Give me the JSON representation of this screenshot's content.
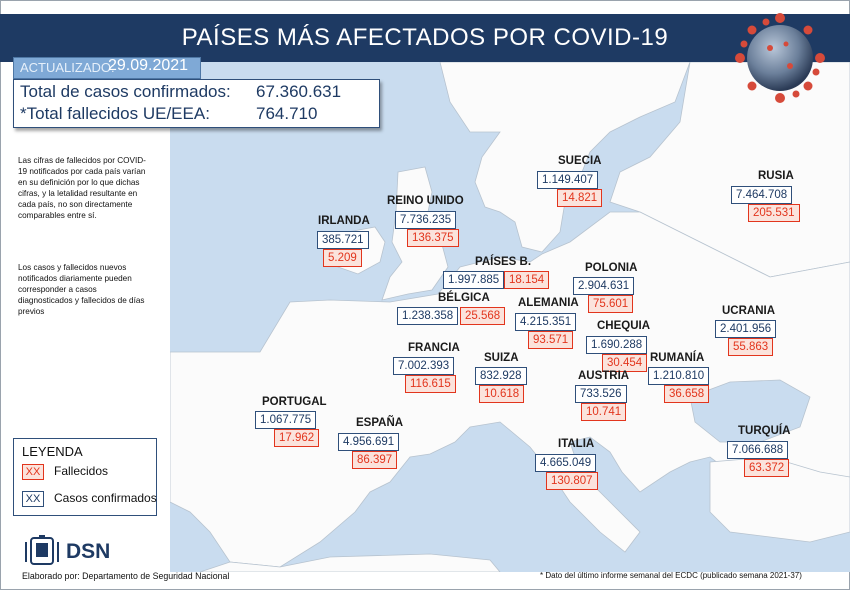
{
  "title": "PAÍSES MÁS AFECTADOS POR COVID-19",
  "updated": {
    "label": "ACTUALIZADO:",
    "date": "29.09.2021"
  },
  "totals": [
    {
      "label": "Total de casos confirmados:",
      "value": "67.360.631"
    },
    {
      "label": "*Total fallecidos UE/EEA:",
      "value": "764.710"
    }
  ],
  "notes": [
    "Las cifras de fallecidos por COVID-19 notificados por cada país varían en su definición por lo que dichas cifras, y la letalidad resultante en cada país, no son directamente comparables entre sí.",
    "Los casos y fallecidos nuevos notificados diariamente pueden corresponder a casos diagnosticados y fallecidos de días previos"
  ],
  "legend": {
    "title": "LEYENDA",
    "items": [
      {
        "symbol": "XX",
        "label": "Fallecidos",
        "kind": "deaths"
      },
      {
        "symbol": "XX",
        "label": "Casos confirmados",
        "kind": "cases"
      }
    ]
  },
  "countries": [
    {
      "name": "SUECIA",
      "cases": "1.149.407",
      "deaths": "14.821"
    },
    {
      "name": "RUSIA",
      "cases": "7.464.708",
      "deaths": "205.531"
    },
    {
      "name": "REINO UNIDO",
      "cases": "7.736.235",
      "deaths": "136.375"
    },
    {
      "name": "IRLANDA",
      "cases": "385.721",
      "deaths": "5.209"
    },
    {
      "name": "PAÍSES B.",
      "cases": "1.997.885",
      "deaths": "18.154"
    },
    {
      "name": "POLONIA",
      "cases": "2.904.631",
      "deaths": "75.601"
    },
    {
      "name": "BÉLGICA",
      "cases": "1.238.358",
      "deaths": "25.568"
    },
    {
      "name": "ALEMANIA",
      "cases": "4.215.351",
      "deaths": "93.571"
    },
    {
      "name": "UCRANIA",
      "cases": "2.401.956",
      "deaths": "55.863"
    },
    {
      "name": "CHEQUIA",
      "cases": "1.690.288",
      "deaths": "30.454"
    },
    {
      "name": "FRANCIA",
      "cases": "7.002.393",
      "deaths": "116.615"
    },
    {
      "name": "SUIZA",
      "cases": "832.928",
      "deaths": "10.618"
    },
    {
      "name": "RUMANÍA",
      "cases": "1.210.810",
      "deaths": "36.658"
    },
    {
      "name": "AUSTRIA",
      "cases": "733.526",
      "deaths": "10.741"
    },
    {
      "name": "PORTUGAL",
      "cases": "1.067.775",
      "deaths": "17.962"
    },
    {
      "name": "ESPAÑA",
      "cases": "4.956.691",
      "deaths": "86.397"
    },
    {
      "name": "ITALIA",
      "cases": "4.665.049",
      "deaths": "130.807"
    },
    {
      "name": "TURQUÍA",
      "cases": "7.066.688",
      "deaths": "63.372"
    }
  ],
  "logo": "DSN",
  "footer": "Elaborado por: Departamento de Seguridad Nacional",
  "footnote": "* Dato del último informe semanal del ECDC (publicado semana 2021-37)",
  "colors": {
    "header": "#1e3a63",
    "sea": "#c9dcef",
    "land": "#fbfbfb",
    "deaths": "#e2351d",
    "cases": "#1e3a63"
  }
}
